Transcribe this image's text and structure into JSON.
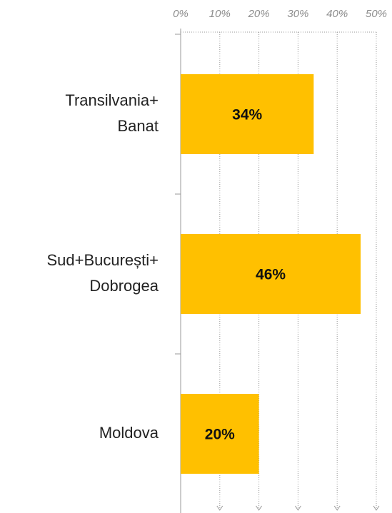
{
  "chart_data": {
    "type": "bar",
    "orientation": "horizontal",
    "categories": [
      [
        "Transilvania+",
        "Banat"
      ],
      [
        "Sud+București+",
        "Dobrogea"
      ],
      [
        "Moldova"
      ]
    ],
    "values": [
      34,
      46,
      20
    ],
    "value_labels": [
      "34%",
      "46%",
      "20%"
    ],
    "color": "#ffc000",
    "xlim": [
      0,
      50
    ],
    "xticks": [
      {
        "value": 0,
        "label": "0%"
      },
      {
        "value": 10,
        "label": "10%"
      },
      {
        "value": 20,
        "label": "20%"
      },
      {
        "value": 30,
        "label": "30%"
      },
      {
        "value": 40,
        "label": "40%"
      },
      {
        "value": 50,
        "label": "50%"
      }
    ],
    "grid": true
  }
}
